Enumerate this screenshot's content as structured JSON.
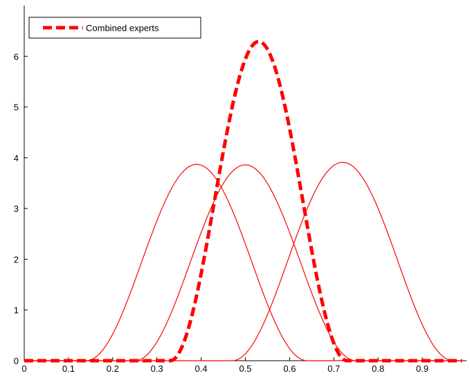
{
  "chart_data": {
    "type": "line",
    "title": "",
    "xlabel": "",
    "ylabel": "",
    "xlim": [
      0,
      1
    ],
    "ylim": [
      0,
      7
    ],
    "xticks": [
      0,
      0.1,
      0.2,
      0.3,
      0.4,
      0.5,
      0.6,
      0.7,
      0.8,
      0.9
    ],
    "xtick_labels": [
      "0",
      "0.1",
      "0.2",
      "0.3",
      "0.4",
      "0.5",
      "0.6",
      "0.7",
      "0.8",
      "0.9"
    ],
    "yticks": [
      0,
      1,
      2,
      3,
      4,
      5,
      6
    ],
    "ytick_labels": [
      "0",
      "1",
      "2",
      "3",
      "4",
      "5",
      "6"
    ],
    "grid": false,
    "legend_position": "top-left",
    "series": [
      {
        "line_style": "solid",
        "color": "#ff0000",
        "curve": "bump",
        "x_start": 0.14,
        "x_peak": 0.39,
        "x_end": 0.64,
        "peak": 3.87
      },
      {
        "line_style": "solid",
        "color": "#ff0000",
        "curve": "bump",
        "x_start": 0.25,
        "x_peak": 0.5,
        "x_end": 0.75,
        "peak": 3.86
      },
      {
        "line_style": "solid",
        "color": "#ff0000",
        "curve": "bump",
        "x_start": 0.47,
        "x_peak": 0.72,
        "x_end": 0.97,
        "peak": 3.91
      },
      {
        "name": "Combined experts",
        "line_style": "dashed",
        "color": "#ff0000",
        "curve": "bump",
        "x_start": 0.33,
        "x_peak": 0.53,
        "x_end": 0.73,
        "peak": 6.29
      }
    ],
    "legend": [
      {
        "label": "Combined experts",
        "line_style": "dashed",
        "color": "#ff0000"
      }
    ]
  }
}
